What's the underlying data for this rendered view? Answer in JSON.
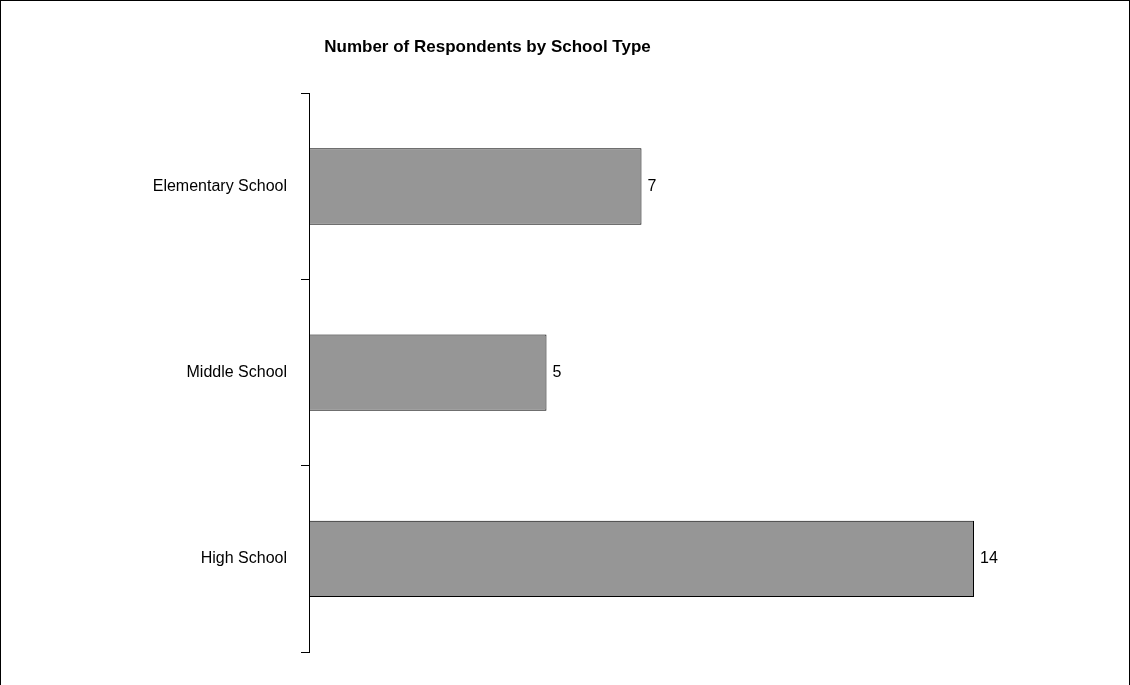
{
  "chart_data": {
    "type": "bar",
    "title": "Number of Respondents by School Type",
    "orientation": "horizontal",
    "categories": [
      "Elementary School",
      "Middle School",
      "High School"
    ],
    "values": [
      7,
      5,
      14
    ],
    "color": "#969696",
    "data_labels": true,
    "grid": false,
    "legend": false
  }
}
